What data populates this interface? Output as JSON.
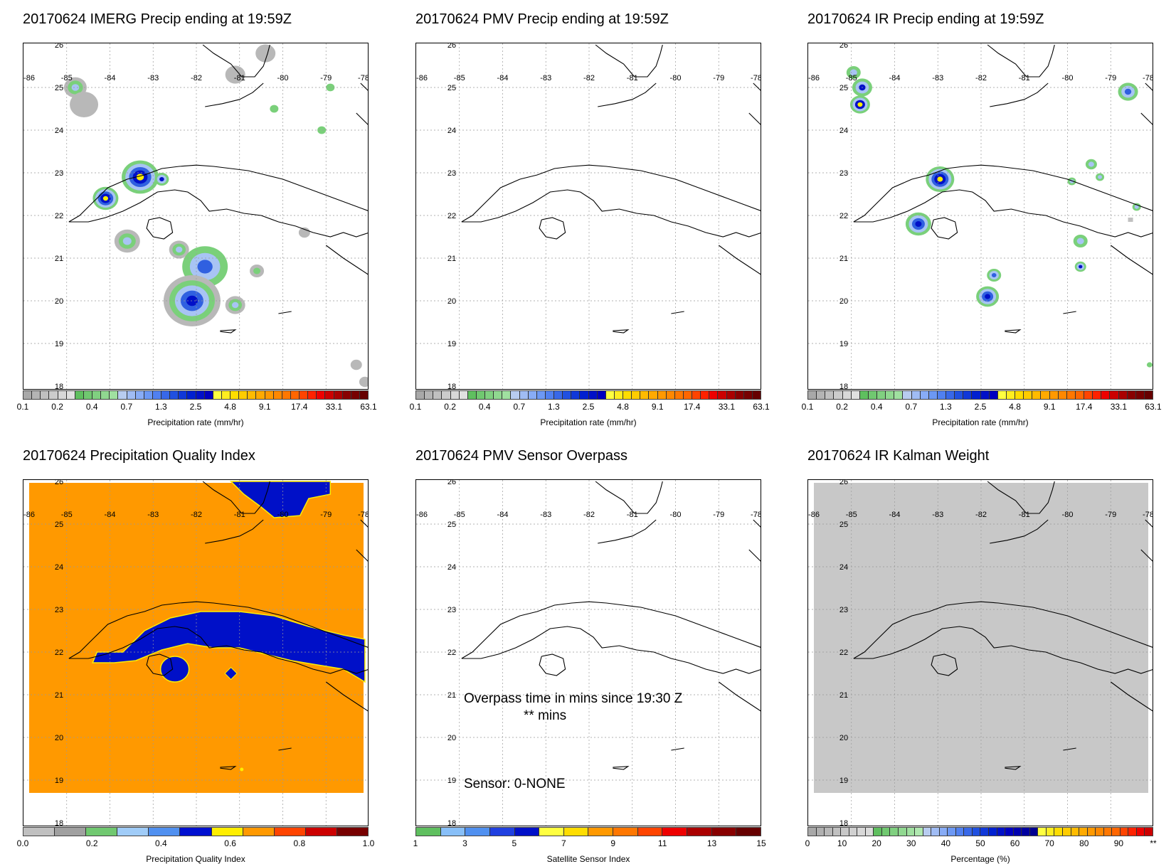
{
  "date": "20170624",
  "panels": [
    {
      "id": "imerg",
      "title": "20170624 IMERG Precip ending at 19:59Z",
      "colorbar": "precip",
      "field": "imerg"
    },
    {
      "id": "pmv",
      "title": "20170624 PMV Precip ending at 19:59Z",
      "colorbar": "precip",
      "field": "none"
    },
    {
      "id": "ir",
      "title": "20170624 IR Precip ending at 19:59Z",
      "colorbar": "precip",
      "field": "ir"
    },
    {
      "id": "pqi",
      "title": "20170624 Precipitation Quality Index",
      "colorbar": "quality",
      "field": "pqi"
    },
    {
      "id": "sensor",
      "title": "20170624 PMV Sensor Overpass",
      "colorbar": "sensor",
      "field": "none",
      "overpass_text": "Overpass time in mins since 19:30 Z",
      "overpass_value": "** mins",
      "sensor_label": "Sensor:",
      "sensor_value": "0-NONE"
    },
    {
      "id": "kalman",
      "title": "20170624 IR Kalman Weight",
      "colorbar": "percent",
      "field": "kalman"
    }
  ],
  "map": {
    "lon_labels": [
      "-86",
      "-85",
      "-84",
      "-83",
      "-82",
      "-81",
      "-80",
      "-79",
      "-78"
    ],
    "lat_labels": [
      "26",
      "25",
      "24",
      "23",
      "22",
      "21",
      "20",
      "19",
      "18"
    ],
    "lon_range": [
      -86,
      -78
    ],
    "lat_range": [
      18,
      26
    ]
  },
  "colorbars": {
    "precip": {
      "label": "Precipitation rate (mm/hr)",
      "colors": [
        "#a8a8a8",
        "#b4b4b4",
        "#c0c0c0",
        "#cccccc",
        "#d8d8d8",
        "#e0e0e0",
        "#5fbf5f",
        "#70c870",
        "#80d080",
        "#90d890",
        "#a0e0a0",
        "#b8ccf0",
        "#a0bcf4",
        "#88acf6",
        "#6c98f4",
        "#5080f0",
        "#3868e8",
        "#2050e0",
        "#1038d8",
        "#0020d0",
        "#0010c8",
        "#0000c0",
        "#ffff40",
        "#ffee20",
        "#ffdd00",
        "#ffcc00",
        "#ffbb00",
        "#ffaa00",
        "#ff9900",
        "#ff8800",
        "#ff7700",
        "#ff6600",
        "#ff4400",
        "#ff2200",
        "#ee0000",
        "#cc0000",
        "#aa0000",
        "#880000",
        "#770000",
        "#660000"
      ],
      "ticks": [
        "0.1",
        "0.2",
        "0.4",
        "0.7",
        "1.3",
        "2.5",
        "4.8",
        "9.1",
        "17.4",
        "33.1",
        "63.1"
      ]
    },
    "quality": {
      "label": "Precipitation Quality Index",
      "colors": [
        "#c0c0c0",
        "#a0a0a0",
        "#70c870",
        "#a0ccf8",
        "#5090f0",
        "#0010d0",
        "#ffee00",
        "#ff9900",
        "#ff4400",
        "#cc0000",
        "#770000"
      ],
      "ticks": [
        "0.0",
        "0.2",
        "0.4",
        "0.6",
        "0.8",
        "1.0"
      ]
    },
    "sensor": {
      "label": "Satellite Sensor Index",
      "colors": [
        "#5fbf5f",
        "#88bff8",
        "#5090f0",
        "#2040e0",
        "#0010c8",
        "#ffff40",
        "#ffdd00",
        "#ff9900",
        "#ff7700",
        "#ff4400",
        "#ee0000",
        "#aa0000",
        "#880000",
        "#660000"
      ],
      "ticks": [
        "1",
        "3",
        "5",
        "7",
        "9",
        "11",
        "13",
        "15"
      ]
    },
    "percent": {
      "label": "Percentage (%)",
      "colors": [
        "#a8a8a8",
        "#b0b0b0",
        "#b8b8b8",
        "#c0c0c0",
        "#c8c8c8",
        "#d0d0d0",
        "#d8d8d8",
        "#dcdcdc",
        "#5fbf5f",
        "#70c870",
        "#80d080",
        "#90d890",
        "#a0e0a0",
        "#b0e8b0",
        "#b8ccf0",
        "#a0bcf4",
        "#88acf6",
        "#6c98f4",
        "#5080f0",
        "#3868e8",
        "#2050e0",
        "#1038d8",
        "#0020d0",
        "#0010c8",
        "#0000c0",
        "#0000b0",
        "#0000a0",
        "#000090",
        "#ffff40",
        "#ffee20",
        "#ffdd00",
        "#ffcc00",
        "#ffbb00",
        "#ffaa00",
        "#ff9900",
        "#ff8800",
        "#ff7700",
        "#ff6600",
        "#ff4400",
        "#ff2200",
        "#ee0000",
        "#cc0000"
      ],
      "ticks": [
        "0",
        "10",
        "20",
        "30",
        "40",
        "50",
        "60",
        "70",
        "80",
        "90",
        "**"
      ]
    }
  }
}
